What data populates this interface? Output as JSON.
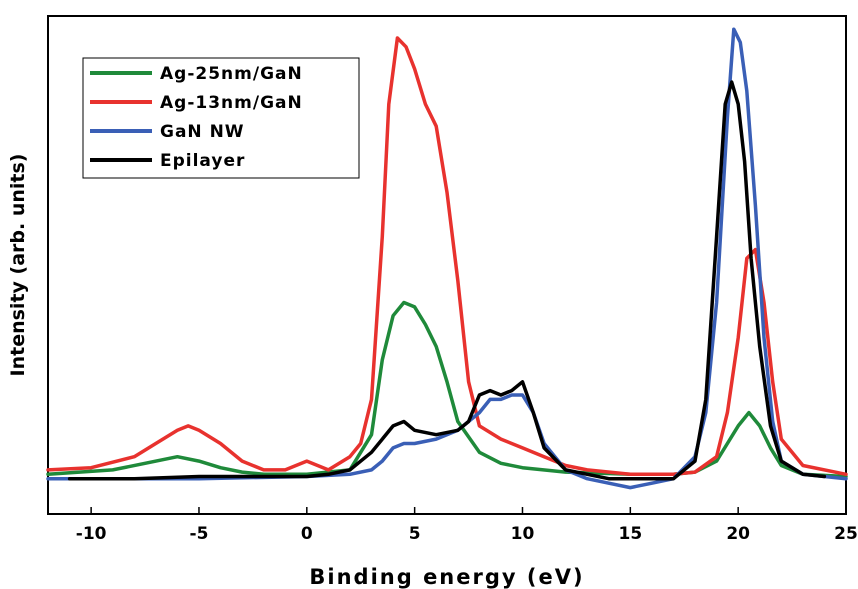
{
  "chart_data": {
    "type": "line",
    "title": "",
    "xlabel": "Binding energy (eV)",
    "ylabel": "Intensity (arb. units)",
    "xlim": [
      -12,
      25
    ],
    "ylim": [
      -0.08,
      1.05
    ],
    "xticks": [
      -10,
      -5,
      0,
      5,
      10,
      15,
      20,
      25
    ],
    "xtick_labels": [
      "-10",
      "-5",
      "0",
      "5",
      "10",
      "15",
      "20",
      "25"
    ],
    "y_ticks_shown": false,
    "grid": false,
    "legend_position": "top-left",
    "series": [
      {
        "name": "Ag-25nm/GaN",
        "color": "#1f8a3a",
        "x": [
          -12,
          -9,
          -7.5,
          -6,
          -5,
          -4,
          -3,
          -2,
          0,
          2,
          3,
          3.5,
          4,
          4.5,
          5,
          5.5,
          6,
          6.5,
          7,
          8,
          9,
          10,
          12,
          15,
          17,
          18,
          19,
          19.5,
          20,
          20.5,
          21,
          21.5,
          22,
          23,
          25
        ],
        "y": [
          0.01,
          0.02,
          0.035,
          0.05,
          0.04,
          0.025,
          0.015,
          0.01,
          0.01,
          0.02,
          0.1,
          0.27,
          0.37,
          0.4,
          0.39,
          0.35,
          0.3,
          0.22,
          0.13,
          0.06,
          0.035,
          0.025,
          0.015,
          0.01,
          0.01,
          0.015,
          0.04,
          0.08,
          0.12,
          0.15,
          0.12,
          0.07,
          0.03,
          0.01,
          0.005
        ]
      },
      {
        "name": "Ag-13nm/GaN",
        "color": "#e8322e",
        "x": [
          -12,
          -10,
          -8,
          -7,
          -6,
          -5.5,
          -5,
          -4,
          -3,
          -2,
          -1,
          0,
          1,
          2,
          2.5,
          3,
          3.5,
          3.8,
          4.2,
          4.6,
          5,
          5.5,
          6,
          6.5,
          7,
          7.5,
          8,
          9,
          10,
          11,
          12,
          13,
          15,
          17,
          18,
          19,
          19.5,
          20,
          20.4,
          20.8,
          21.2,
          21.6,
          22,
          23,
          25
        ],
        "y": [
          0.02,
          0.025,
          0.05,
          0.08,
          0.11,
          0.12,
          0.11,
          0.08,
          0.04,
          0.02,
          0.02,
          0.04,
          0.02,
          0.05,
          0.08,
          0.18,
          0.55,
          0.85,
          1.0,
          0.98,
          0.93,
          0.85,
          0.8,
          0.65,
          0.45,
          0.22,
          0.12,
          0.09,
          0.07,
          0.05,
          0.03,
          0.02,
          0.01,
          0.01,
          0.015,
          0.05,
          0.15,
          0.32,
          0.5,
          0.52,
          0.4,
          0.22,
          0.09,
          0.03,
          0.01
        ]
      },
      {
        "name": "GaN NW",
        "color": "#3a5fb6",
        "x": [
          -12,
          -10,
          -5,
          0,
          2,
          3,
          3.5,
          4,
          4.5,
          5,
          6,
          7,
          8,
          8.5,
          9,
          9.5,
          10,
          10.5,
          11,
          12,
          13,
          14,
          15,
          16,
          17,
          18,
          18.5,
          19,
          19.5,
          19.8,
          20.1,
          20.4,
          20.8,
          21.2,
          21.6,
          22,
          23,
          25
        ],
        "y": [
          0,
          0,
          0,
          0.005,
          0.01,
          0.02,
          0.04,
          0.07,
          0.08,
          0.08,
          0.09,
          0.11,
          0.15,
          0.18,
          0.18,
          0.19,
          0.19,
          0.15,
          0.08,
          0.02,
          0.0,
          -0.01,
          -0.02,
          -0.01,
          0.0,
          0.05,
          0.15,
          0.4,
          0.82,
          1.02,
          0.99,
          0.88,
          0.62,
          0.32,
          0.13,
          0.04,
          0.01,
          0.0
        ]
      },
      {
        "name": "Epilayer",
        "color": "#000000",
        "x": [
          -11,
          -8,
          -5,
          -2,
          0,
          1,
          2,
          3,
          4,
          4.5,
          5,
          6,
          7,
          7.5,
          8,
          8.5,
          9,
          9.5,
          10,
          10.5,
          11,
          12,
          14,
          16,
          17,
          18,
          18.5,
          19,
          19.4,
          19.7,
          20,
          20.3,
          20.6,
          21,
          21.5,
          22,
          23,
          24
        ],
        "y": [
          0,
          0.0,
          0.005,
          0.005,
          0.005,
          0.01,
          0.02,
          0.06,
          0.12,
          0.13,
          0.11,
          0.1,
          0.11,
          0.13,
          0.19,
          0.2,
          0.19,
          0.2,
          0.22,
          0.15,
          0.07,
          0.02,
          0.0,
          0.0,
          0.0,
          0.04,
          0.18,
          0.55,
          0.85,
          0.9,
          0.85,
          0.72,
          0.5,
          0.3,
          0.12,
          0.04,
          0.01,
          0.005
        ]
      }
    ]
  }
}
